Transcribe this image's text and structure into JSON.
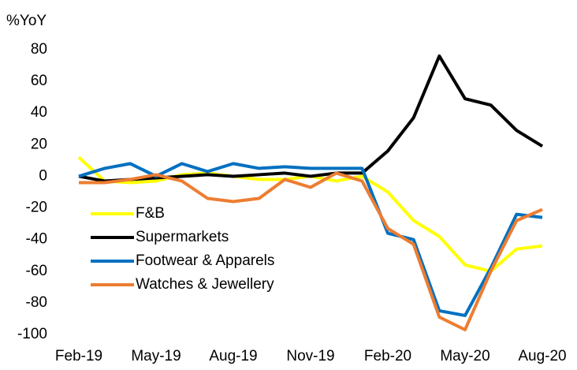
{
  "chart_data": {
    "type": "line",
    "y_label": "%YoY",
    "categories": [
      "Feb-19",
      null,
      null,
      "May-19",
      null,
      null,
      "Aug-19",
      null,
      null,
      "Nov-19",
      null,
      null,
      "Feb-20",
      null,
      null,
      "May-20",
      null,
      null,
      "Aug-20"
    ],
    "series": [
      {
        "name": "F&B",
        "color": "#ffff00",
        "values": [
          12,
          -3,
          -4,
          -3,
          1,
          2,
          0,
          -2,
          -2,
          0,
          -3,
          0,
          -10,
          -28,
          -38,
          -56,
          -60,
          -46,
          -44
        ]
      },
      {
        "name": "Supermarkets",
        "color": "#000000",
        "values": [
          0,
          -3,
          -2,
          -1,
          0,
          1,
          0,
          1,
          2,
          0,
          2,
          2,
          16,
          37,
          76,
          49,
          45,
          29,
          19
        ]
      },
      {
        "name": "Footwear & Apparels",
        "color": "#0070c0",
        "values": [
          0,
          5,
          8,
          0,
          8,
          3,
          8,
          5,
          6,
          5,
          5,
          5,
          -36,
          -40,
          -85,
          -88,
          -58,
          -24,
          -26
        ]
      },
      {
        "name": "Watches & Jewellery",
        "color": "#ed7d31",
        "values": [
          -4,
          -4,
          -2,
          1,
          -3,
          -14,
          -16,
          -14,
          -2,
          -7,
          2,
          -3,
          -33,
          -43,
          -89,
          -97,
          -60,
          -28,
          -21
        ]
      }
    ],
    "ylim": [
      -100,
      80
    ],
    "yticks": [
      -100,
      -80,
      -60,
      -40,
      -20,
      0,
      20,
      40,
      60,
      80
    ]
  }
}
